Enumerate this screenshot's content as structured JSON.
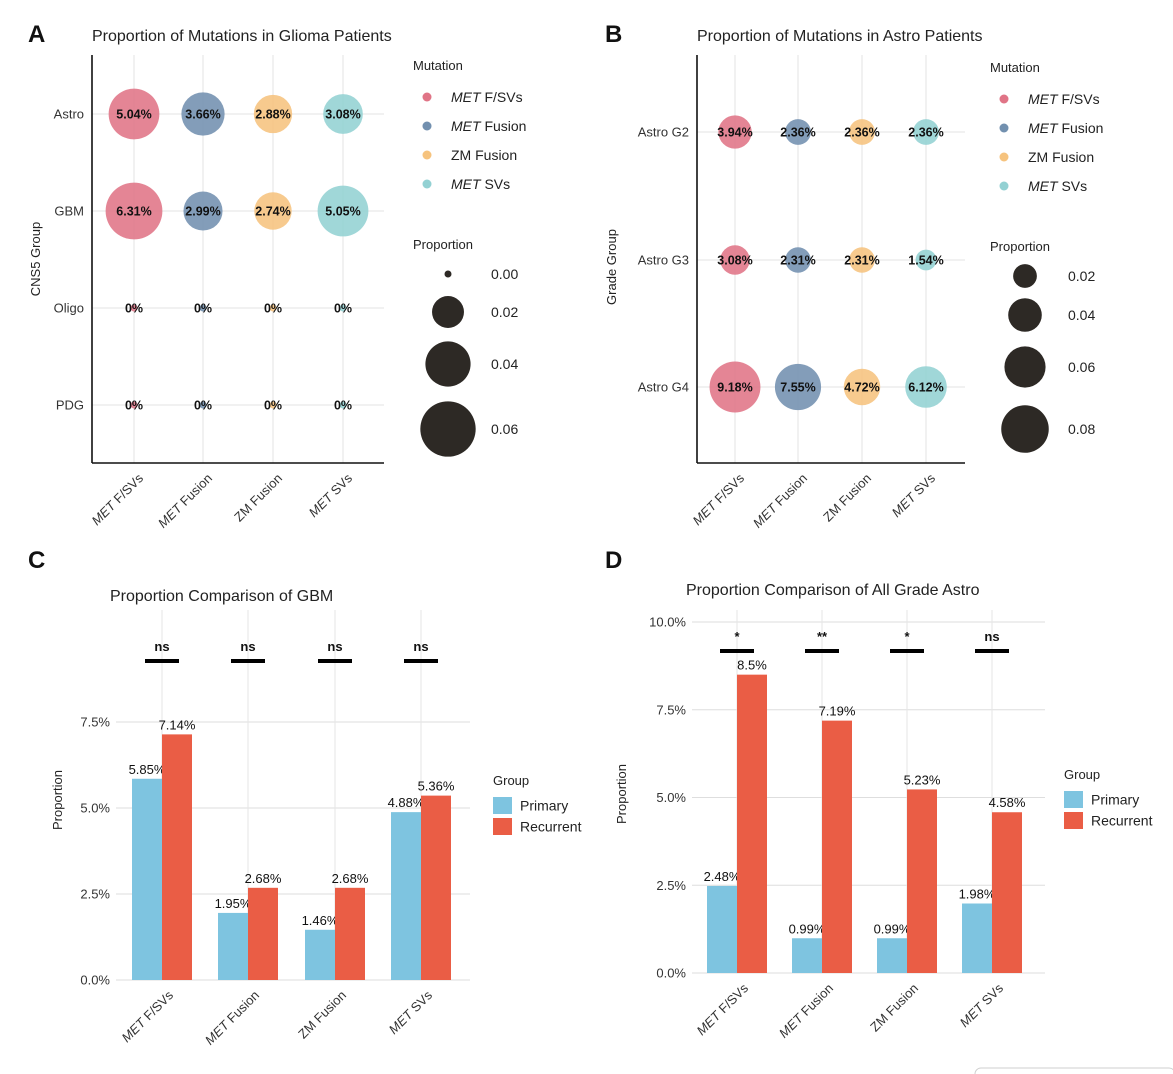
{
  "panels": [
    {
      "letter": "A",
      "title": "Proportion of Mutations in Glioma Patients",
      "ylabel": "CNS5 Group"
    },
    {
      "letter": "B",
      "title": "Proportion of Mutations in Astro Patients",
      "ylabel": "Grade Group"
    },
    {
      "letter": "C",
      "title": "Proportion Comparison of  GBM",
      "ylabel": "Proportion"
    },
    {
      "letter": "D",
      "title": "Proportion Comparison of All Grade Astro",
      "ylabel": "Proportion"
    }
  ],
  "mutations": [
    {
      "italic": "MET",
      "rest": " F/SVs"
    },
    {
      "italic": "MET",
      "rest": " Fusion"
    },
    {
      "italic": "",
      "rest": "ZM Fusion"
    },
    {
      "italic": "MET",
      "rest": " SVs"
    }
  ],
  "colors": {
    "met_fsvs": "#E07486",
    "met_fusion": "#7290AF",
    "zm_fusion": "#F6C37E",
    "met_svs": "#93D1D3",
    "primary": "#7EC4E0",
    "recurrent": "#EA5D45",
    "size_key": "#2D2925"
  },
  "legend": {
    "mutation_title": "Mutation",
    "proportion_title": "Proportion",
    "group_title": "Group"
  },
  "chart_data": [
    {
      "type": "scatter",
      "subtype": "bubble",
      "title": "Proportion of Mutations in Glioma Patients",
      "xlabel": "",
      "ylabel": "CNS5 Group",
      "x_categories": [
        "MET F/SVs",
        "MET Fusion",
        "ZM Fusion",
        "MET SVs"
      ],
      "y_categories": [
        "Astro",
        "GBM",
        "Oligo",
        "PDG"
      ],
      "values": [
        [
          0.0504,
          0.0366,
          0.0288,
          0.0308
        ],
        [
          0.0631,
          0.0299,
          0.0274,
          0.0505
        ],
        [
          0,
          0,
          0,
          0
        ],
        [
          0,
          0,
          0,
          0
        ]
      ],
      "labels": [
        [
          "5.04%",
          "3.66%",
          "2.88%",
          "3.08%"
        ],
        [
          "6.31%",
          "2.99%",
          "2.74%",
          "5.05%"
        ],
        [
          "0%",
          "0%",
          "0%",
          "0%"
        ],
        [
          "0%",
          "0%",
          "0%",
          "0%"
        ]
      ],
      "size_legend": {
        "title": "Proportion",
        "values": [
          0.0,
          0.02,
          0.04,
          0.06
        ],
        "labels": [
          "0.00",
          "0.02",
          "0.04",
          "0.06"
        ]
      },
      "color_legend": {
        "title": "Mutation",
        "entries": [
          "MET F/SVs",
          "MET Fusion",
          "ZM Fusion",
          "MET SVs"
        ]
      },
      "grid": true
    },
    {
      "type": "scatter",
      "subtype": "bubble",
      "title": "Proportion of Mutations in Astro Patients",
      "xlabel": "",
      "ylabel": "Grade Group",
      "x_categories": [
        "MET F/SVs",
        "MET Fusion",
        "ZM Fusion",
        "MET SVs"
      ],
      "y_categories": [
        "Astro G2",
        "Astro G3",
        "Astro G4"
      ],
      "values": [
        [
          0.0394,
          0.0236,
          0.0236,
          0.0236
        ],
        [
          0.0308,
          0.0231,
          0.0231,
          0.0154
        ],
        [
          0.0918,
          0.0755,
          0.0472,
          0.0612
        ]
      ],
      "labels": [
        [
          "3.94%",
          "2.36%",
          "2.36%",
          "2.36%"
        ],
        [
          "3.08%",
          "2.31%",
          "2.31%",
          "1.54%"
        ],
        [
          "9.18%",
          "7.55%",
          "4.72%",
          "6.12%"
        ]
      ],
      "size_legend": {
        "title": "Proportion",
        "values": [
          0.02,
          0.04,
          0.06,
          0.08
        ],
        "labels": [
          "0.02",
          "0.04",
          "0.06",
          "0.08"
        ]
      },
      "color_legend": {
        "title": "Mutation",
        "entries": [
          "MET F/SVs",
          "MET Fusion",
          "ZM Fusion",
          "MET SVs"
        ]
      },
      "grid": true
    },
    {
      "type": "bar",
      "title": "Proportion Comparison of  GBM",
      "xlabel": "",
      "ylabel": "Proportion",
      "categories": [
        "MET F/SVs",
        "MET Fusion",
        "ZM Fusion",
        "MET SVs"
      ],
      "series": [
        {
          "name": "Primary",
          "values": [
            5.85,
            1.95,
            1.46,
            4.88
          ],
          "labels": [
            "5.85%",
            "1.95%",
            "1.46%",
            "4.88%"
          ]
        },
        {
          "name": "Recurrent",
          "values": [
            7.14,
            2.68,
            2.68,
            5.36
          ],
          "labels": [
            "7.14%",
            "2.68%",
            "2.68%",
            "5.36%"
          ]
        }
      ],
      "significance": [
        "ns",
        "ns",
        "ns",
        "ns"
      ],
      "ylim": [
        0,
        8.75
      ],
      "yticks": [
        0,
        2.5,
        5.0,
        7.5
      ],
      "yticklabels": [
        "0.0%",
        "2.5%",
        "5.0%",
        "7.5%"
      ],
      "legend": {
        "title": "Group",
        "position": "right"
      },
      "grid": true
    },
    {
      "type": "bar",
      "title": "Proportion Comparison of All Grade Astro",
      "xlabel": "",
      "ylabel": "Proportion",
      "categories": [
        "MET F/SVs",
        "MET Fusion",
        "ZM Fusion",
        "MET SVs"
      ],
      "series": [
        {
          "name": "Primary",
          "values": [
            2.48,
            0.99,
            0.99,
            1.98
          ],
          "labels": [
            "2.48%",
            "0.99%",
            "0.99%",
            "1.98%"
          ]
        },
        {
          "name": "Recurrent",
          "values": [
            8.5,
            7.19,
            5.23,
            4.58
          ],
          "labels": [
            "8.5%",
            "7.19%",
            "5.23%",
            "4.58%"
          ]
        }
      ],
      "significance": [
        "*",
        "**",
        "*",
        "ns"
      ],
      "ylim": [
        0,
        10.0
      ],
      "yticks": [
        0,
        2.5,
        5.0,
        7.5,
        10.0
      ],
      "yticklabels": [
        "0.0%",
        "2.5%",
        "5.0%",
        "7.5%",
        "10.0%"
      ],
      "legend": {
        "title": "Group",
        "position": "right"
      },
      "grid": true
    }
  ]
}
